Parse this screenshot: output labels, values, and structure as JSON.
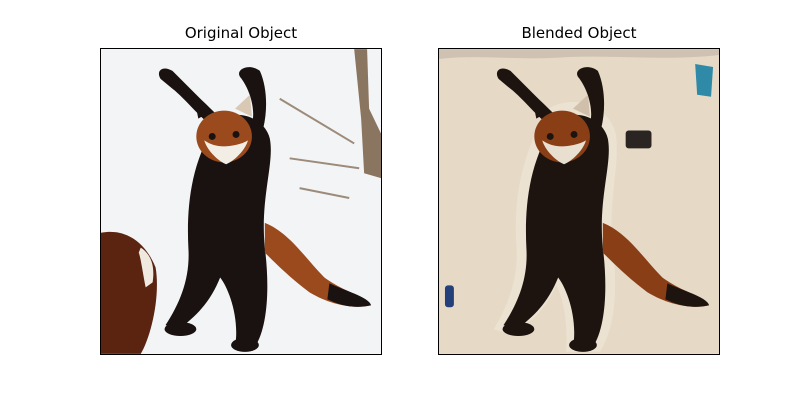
{
  "figure": {
    "left_panel": {
      "title": "Original Object",
      "background": "snow"
    },
    "right_panel": {
      "title": "Blended Object",
      "background": "sand"
    }
  },
  "colors": {
    "frame": "#000000",
    "snow": "#f3f4f6",
    "sand": "#e6d9c6",
    "fur_dark": "#1a1210",
    "fur_red": "#9a4a1c",
    "face_white": "#f2eee6"
  }
}
